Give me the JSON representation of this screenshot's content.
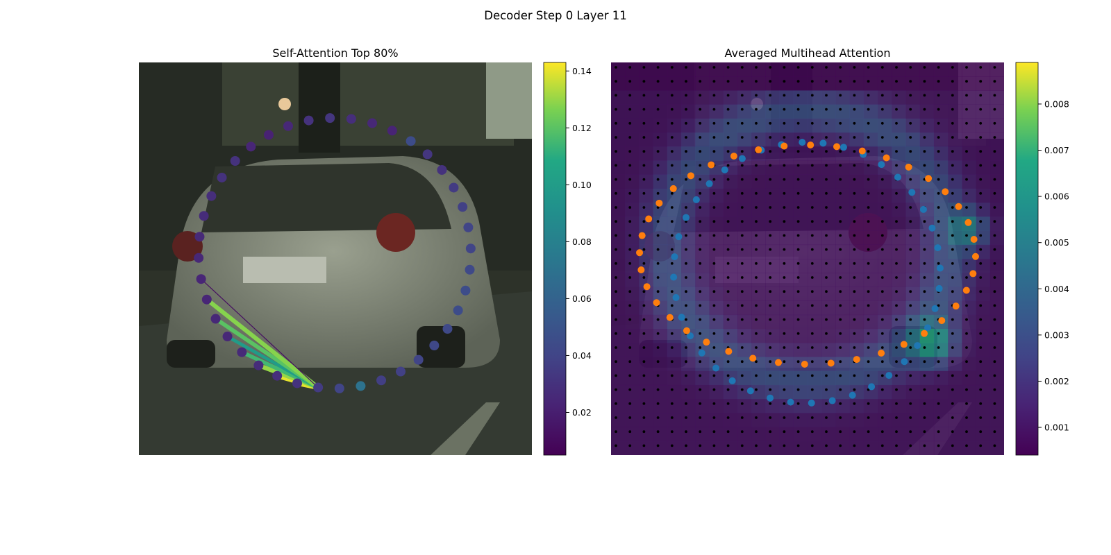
{
  "figure": {
    "suptitle": "Decoder Step 0 Layer 11"
  },
  "colors": {
    "viridis_low": "#440154",
    "viridis_high": "#fde725",
    "blue_points": "#1f77b4",
    "orange_points": "#ff7f0e",
    "grid_dots": "#000000"
  },
  "chart_data": [
    {
      "type": "scatter",
      "title": "Self-Attention Top 80%",
      "background": "dashcam image of a silver hatchback car seen from behind",
      "colormap": "viridis",
      "colorbar": {
        "range": [
          0.005,
          0.143
        ],
        "ticks": [
          "0.02",
          "0.04",
          "0.06",
          "0.08",
          "0.10",
          "0.12",
          "0.14"
        ]
      },
      "points_note": "40 polygon vertices arranged in an ellipse around the car, colored by attention",
      "point_values": [
        0.035,
        0.03,
        0.028,
        0.027,
        0.026,
        0.025,
        0.025,
        0.024,
        0.024,
        0.025,
        0.026,
        0.027,
        0.028,
        0.03,
        0.03,
        0.024,
        0.022,
        0.025,
        0.03,
        0.032,
        0.028,
        0.025,
        0.023,
        0.045,
        0.032,
        0.03,
        0.035,
        0.038,
        0.04,
        0.04,
        0.043,
        0.045,
        0.045,
        0.043,
        0.042,
        0.04,
        0.038,
        0.037,
        0.07,
        0.04
      ],
      "edges": [
        {
          "to": 1,
          "weight": 0.14
        },
        {
          "to": 2,
          "weight": 0.14
        },
        {
          "to": 3,
          "weight": 0.13
        },
        {
          "to": 4,
          "weight": 0.115
        },
        {
          "to": 5,
          "weight": 0.1
        },
        {
          "to": 6,
          "weight": 0.12
        },
        {
          "to": 7,
          "weight": 0.128
        },
        {
          "to": 8,
          "weight": 0.012
        }
      ]
    },
    {
      "type": "heatmap",
      "title": "Averaged Multihead Attention",
      "background": "same dashcam image overlaid with attention heatmap",
      "colormap": "viridis",
      "colorbar": {
        "range": [
          0.0004,
          0.0089
        ],
        "ticks": [
          "0.001",
          "0.002",
          "0.003",
          "0.004",
          "0.005",
          "0.006",
          "0.007",
          "0.008"
        ]
      },
      "grid": "28 x 28 reference points (black dots)",
      "series": [
        {
          "color": "blue",
          "points_note": "40 points on inner ellipse"
        },
        {
          "color": "orange",
          "points_note": "40 points on outer ellipse"
        }
      ]
    }
  ]
}
